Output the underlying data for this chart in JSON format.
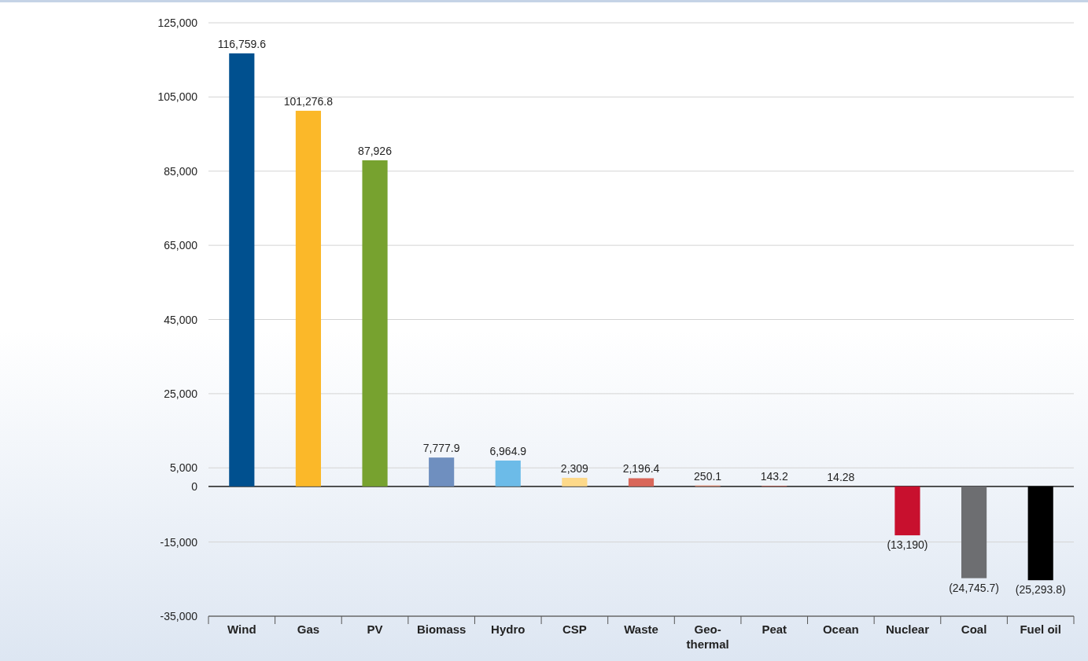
{
  "chart_data": {
    "type": "bar",
    "categories": [
      "Wind",
      "Gas",
      "PV",
      "Biomass",
      "Hydro",
      "CSP",
      "Waste",
      "Geo-thermal",
      "Peat",
      "Ocean",
      "Nuclear",
      "Coal",
      "Fuel oil"
    ],
    "values": [
      116759.6,
      101276.8,
      87926,
      7777.9,
      6964.9,
      2309,
      2196.4,
      250.1,
      143.2,
      14.28,
      -13190,
      -24745.7,
      -25293.8
    ],
    "colors": [
      "#00508f",
      "#fbb829",
      "#77a22f",
      "#6f8fbf",
      "#6cbbe8",
      "#fdd98a",
      "#d9675a",
      "#e08a70",
      "#d9675a",
      "#d9675a",
      "#c8102e",
      "#6d6e71",
      "#000000"
    ],
    "value_labels": [
      "116,759.6",
      "101,276.8",
      "87,926",
      "7,777.9",
      "6,964.9",
      "2,309",
      "2,196.4",
      "250.1",
      "143.2",
      "14.28",
      "(13,190)",
      "(24,745.7)",
      "(25,293.8)"
    ],
    "ylim": [
      -35000,
      125000
    ],
    "yticks": [
      {
        "value": -35000,
        "label": "-35,000"
      },
      {
        "value": -15000,
        "label": "-15,000"
      },
      0,
      {
        "value": 5000,
        "label": "5,000"
      },
      {
        "value": 25000,
        "label": "25,000"
      },
      {
        "value": 45000,
        "label": "45,000"
      },
      {
        "value": 65000,
        "label": "65,000"
      },
      {
        "value": 85000,
        "label": "85,000"
      },
      {
        "value": 105000,
        "label": "105,000"
      },
      {
        "value": 125000,
        "label": "125,000"
      }
    ],
    "grid": "y"
  }
}
